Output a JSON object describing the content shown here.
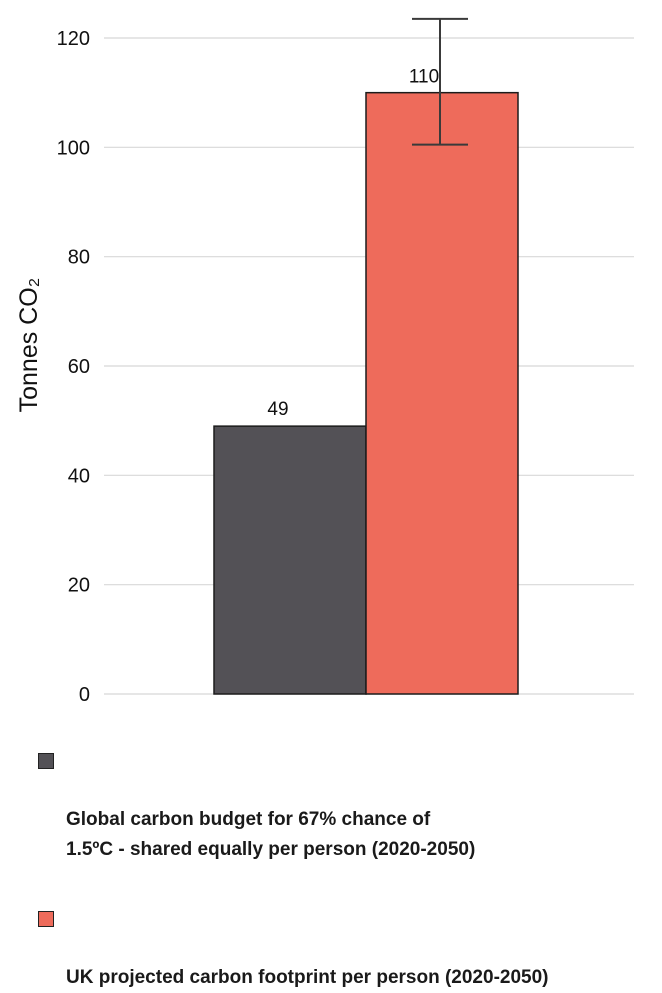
{
  "chart_data": {
    "type": "bar",
    "title": "",
    "xlabel": "",
    "ylabel": "Tonnes CO₂",
    "ylim": [
      0,
      120
    ],
    "yticks": [
      0,
      20,
      40,
      60,
      80,
      100,
      120
    ],
    "grid": true,
    "legend_position": "bottom",
    "series": [
      {
        "name": "Global carbon budget for 67% chance of\n1.5ºC - shared equally per person (2020-2050)",
        "value": 49,
        "label": "49",
        "color": "#535156"
      },
      {
        "name": "UK projected carbon footprint per person (2020-2050)",
        "value": 110,
        "label": "110",
        "color": "#ee6b5b",
        "error_low": 100.5,
        "error_high": 123.5
      }
    ]
  }
}
